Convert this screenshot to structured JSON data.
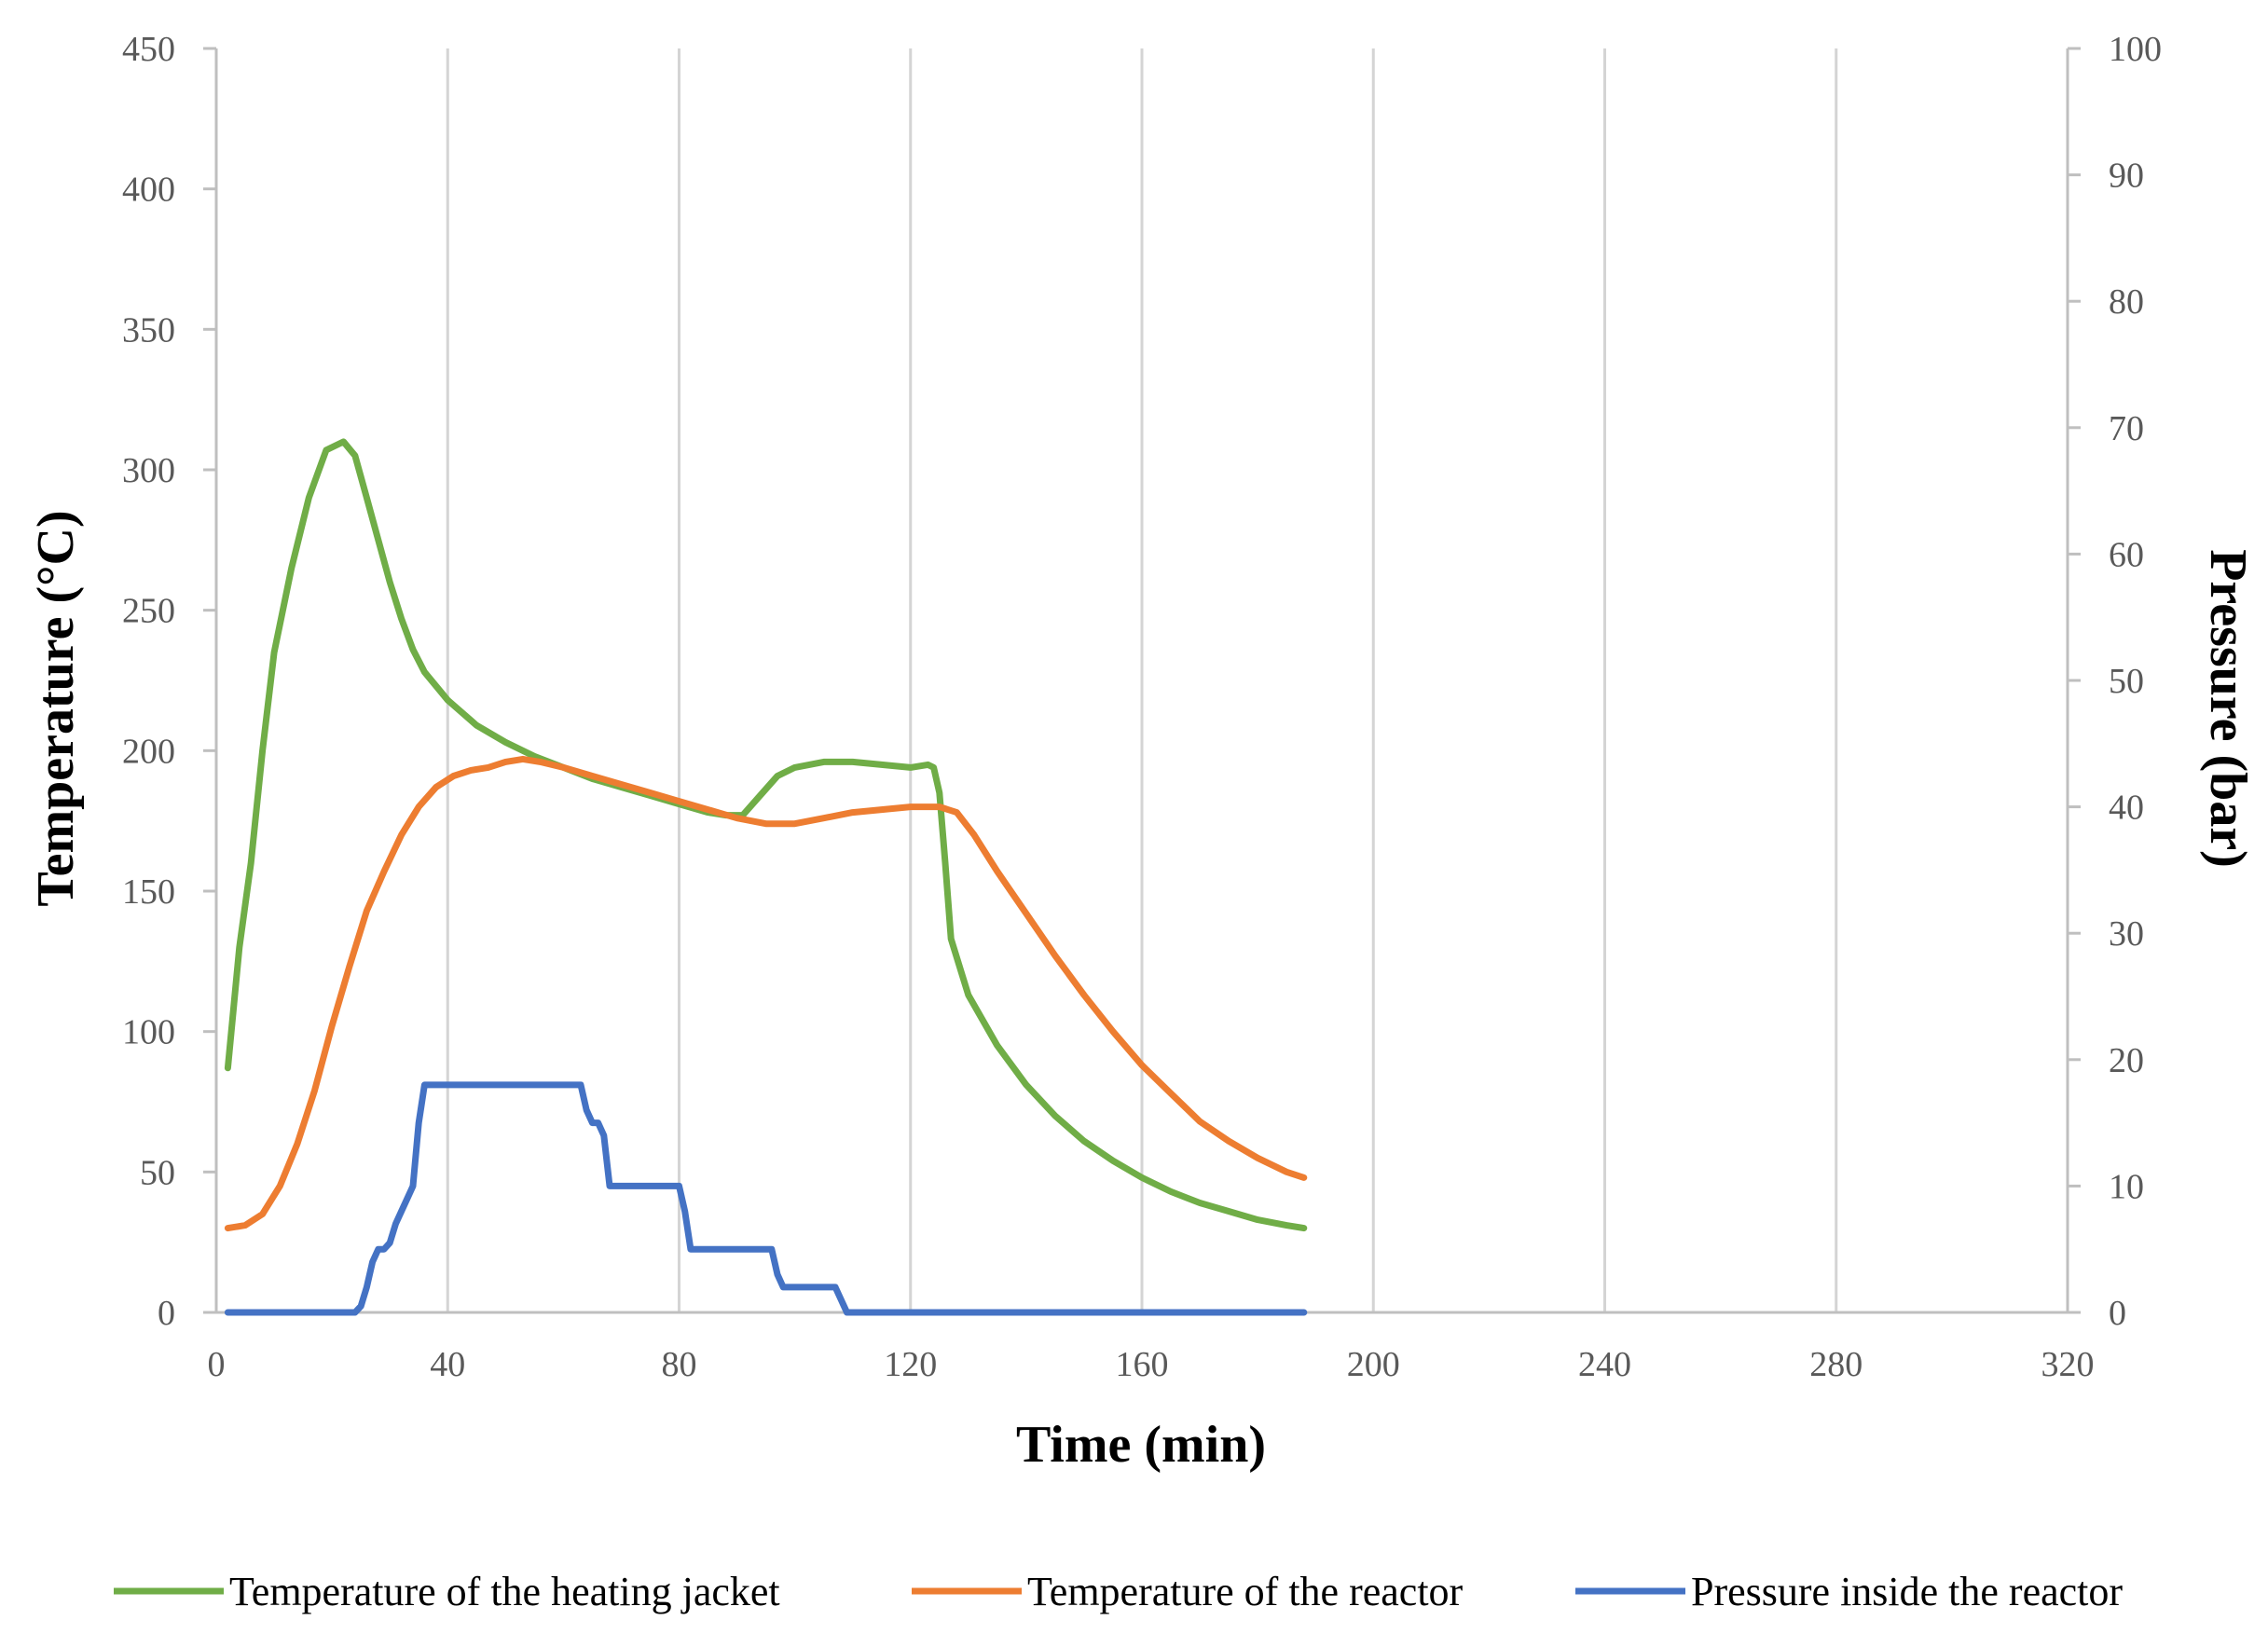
{
  "chart_data": {
    "type": "line",
    "title": "",
    "xlabel": "Time (min)",
    "ylabel": "Temperature (°C)",
    "y2label": "Pressure (bar)",
    "xlim": [
      0,
      320
    ],
    "ylim": [
      0,
      450
    ],
    "y2lim": [
      0,
      100
    ],
    "xticks": [
      0,
      40,
      80,
      120,
      160,
      200,
      240,
      280,
      320
    ],
    "yticks": [
      0,
      50,
      100,
      150,
      200,
      250,
      300,
      350,
      400,
      450
    ],
    "y2ticks": [
      0,
      10,
      20,
      30,
      40,
      50,
      60,
      70,
      80,
      90,
      100
    ],
    "grid": "vertical",
    "legend": "bottom",
    "series": [
      {
        "name": "Temperature of the heating jacket",
        "axis": "left",
        "color": "#70AD47",
        "points": [
          [
            2,
            87
          ],
          [
            4,
            130
          ],
          [
            6,
            160
          ],
          [
            8,
            200
          ],
          [
            10,
            235
          ],
          [
            13,
            265
          ],
          [
            16,
            290
          ],
          [
            19,
            307
          ],
          [
            22,
            310
          ],
          [
            24,
            305
          ],
          [
            26,
            290
          ],
          [
            28,
            275
          ],
          [
            30,
            260
          ],
          [
            32,
            247
          ],
          [
            34,
            236
          ],
          [
            36,
            228
          ],
          [
            40,
            218
          ],
          [
            45,
            209
          ],
          [
            50,
            203
          ],
          [
            55,
            198
          ],
          [
            60,
            194
          ],
          [
            65,
            190
          ],
          [
            70,
            187
          ],
          [
            75,
            184
          ],
          [
            80,
            181
          ],
          [
            85,
            178
          ],
          [
            88,
            177
          ],
          [
            91,
            177
          ],
          [
            94,
            184
          ],
          [
            97,
            191
          ],
          [
            100,
            194
          ],
          [
            105,
            196
          ],
          [
            110,
            196
          ],
          [
            115,
            195
          ],
          [
            120,
            194
          ],
          [
            123,
            195
          ],
          [
            124,
            194
          ],
          [
            125,
            185
          ],
          [
            126,
            160
          ],
          [
            127,
            133
          ],
          [
            130,
            113
          ],
          [
            135,
            95
          ],
          [
            140,
            81
          ],
          [
            145,
            70
          ],
          [
            150,
            61
          ],
          [
            155,
            54
          ],
          [
            160,
            48
          ],
          [
            165,
            43
          ],
          [
            170,
            39
          ],
          [
            175,
            36
          ],
          [
            180,
            33
          ],
          [
            185,
            31
          ],
          [
            188,
            30
          ]
        ]
      },
      {
        "name": "Temperature of the reactor",
        "axis": "left",
        "color": "#ED7D31",
        "points": [
          [
            2,
            30
          ],
          [
            5,
            31
          ],
          [
            8,
            35
          ],
          [
            11,
            45
          ],
          [
            14,
            60
          ],
          [
            17,
            79
          ],
          [
            20,
            102
          ],
          [
            23,
            123
          ],
          [
            26,
            143
          ],
          [
            29,
            157
          ],
          [
            32,
            170
          ],
          [
            35,
            180
          ],
          [
            38,
            187
          ],
          [
            41,
            191
          ],
          [
            44,
            193
          ],
          [
            47,
            194
          ],
          [
            50,
            196
          ],
          [
            53,
            197
          ],
          [
            56,
            196
          ],
          [
            60,
            194
          ],
          [
            65,
            191
          ],
          [
            70,
            188
          ],
          [
            75,
            185
          ],
          [
            80,
            182
          ],
          [
            85,
            179
          ],
          [
            90,
            176
          ],
          [
            95,
            174
          ],
          [
            100,
            174
          ],
          [
            105,
            176
          ],
          [
            110,
            178
          ],
          [
            115,
            179
          ],
          [
            120,
            180
          ],
          [
            125,
            180
          ],
          [
            128,
            178
          ],
          [
            131,
            170
          ],
          [
            135,
            157
          ],
          [
            140,
            142
          ],
          [
            145,
            127
          ],
          [
            150,
            113
          ],
          [
            155,
            100
          ],
          [
            160,
            88
          ],
          [
            165,
            78
          ],
          [
            170,
            68
          ],
          [
            175,
            61
          ],
          [
            180,
            55
          ],
          [
            185,
            50
          ],
          [
            188,
            48
          ]
        ]
      },
      {
        "name": "Pressure inside the reactor",
        "axis": "right",
        "color": "#4472C4",
        "points": [
          [
            2,
            0
          ],
          [
            24,
            0
          ],
          [
            25,
            0.5
          ],
          [
            26,
            2
          ],
          [
            27,
            4
          ],
          [
            28,
            5
          ],
          [
            29,
            5
          ],
          [
            30,
            5.5
          ],
          [
            31,
            7
          ],
          [
            32,
            8
          ],
          [
            33,
            9
          ],
          [
            34,
            10
          ],
          [
            35,
            15
          ],
          [
            36,
            18
          ],
          [
            37,
            18
          ],
          [
            38,
            18
          ],
          [
            62,
            18
          ],
          [
            63,
            18
          ],
          [
            64,
            16
          ],
          [
            65,
            15
          ],
          [
            66,
            15
          ],
          [
            67,
            14
          ],
          [
            68,
            10
          ],
          [
            69,
            10
          ],
          [
            70,
            10
          ],
          [
            80,
            10
          ],
          [
            81,
            8
          ],
          [
            82,
            5
          ],
          [
            83,
            5
          ],
          [
            95,
            5
          ],
          [
            96,
            5
          ],
          [
            97,
            3
          ],
          [
            98,
            2
          ],
          [
            99,
            2
          ],
          [
            100,
            2
          ],
          [
            107,
            2
          ],
          [
            108,
            1
          ],
          [
            109,
            0
          ],
          [
            110,
            0
          ],
          [
            188,
            0
          ]
        ]
      }
    ]
  }
}
